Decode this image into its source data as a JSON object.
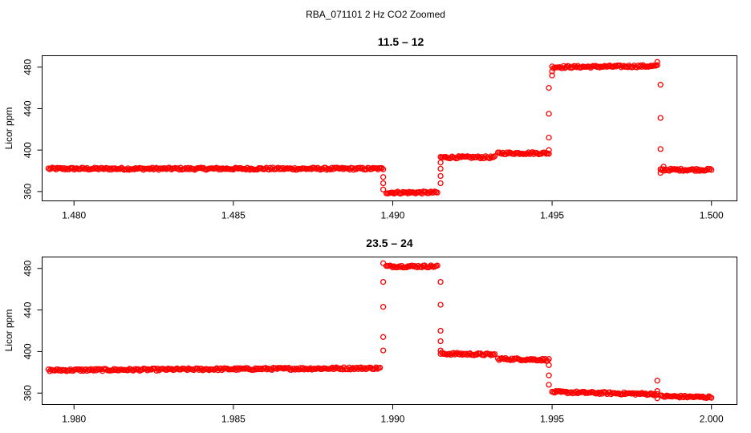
{
  "main_title": "RBA_071101  2 Hz CO2 Zoomed",
  "colors": {
    "points": "#ff0000",
    "axis": "#000000",
    "background": "#ffffff"
  },
  "chart_data": [
    {
      "type": "scatter",
      "title": "11.5 – 12",
      "xlabel": "",
      "ylabel": "Licor ppm",
      "xlim": [
        1.479,
        1.5008
      ],
      "ylim": [
        351,
        491
      ],
      "xticks": [
        1.48,
        1.485,
        1.49,
        1.495,
        1.5
      ],
      "xtick_labels": [
        "1.480",
        "1.485",
        "1.490",
        "1.495",
        "1.500"
      ],
      "yticks": [
        360,
        400,
        440,
        480
      ],
      "ytick_labels": [
        "360",
        "400",
        "440",
        "480"
      ],
      "plateaus": [
        {
          "x0": 1.4792,
          "x1": 1.4897,
          "y0": 382,
          "y1": 382
        },
        {
          "x0": 1.4898,
          "x1": 1.4914,
          "y0": 359,
          "y1": 359
        },
        {
          "x0": 1.4915,
          "x1": 1.4932,
          "y0": 393,
          "y1": 393
        },
        {
          "x0": 1.4933,
          "x1": 1.4949,
          "y0": 397,
          "y1": 397
        },
        {
          "x0": 1.495,
          "x1": 1.4983,
          "y0": 480,
          "y1": 481
        },
        {
          "x0": 1.4984,
          "x1": 1.5,
          "y0": 381,
          "y1": 381
        }
      ],
      "transition_points": [
        {
          "x": 1.4897,
          "y": 374
        },
        {
          "x": 1.4897,
          "y": 368
        },
        {
          "x": 1.4897,
          "y": 362
        },
        {
          "x": 1.4915,
          "y": 368
        },
        {
          "x": 1.4915,
          "y": 375
        },
        {
          "x": 1.4915,
          "y": 382
        },
        {
          "x": 1.4915,
          "y": 388
        },
        {
          "x": 1.4949,
          "y": 400
        },
        {
          "x": 1.4949,
          "y": 412
        },
        {
          "x": 1.4949,
          "y": 435
        },
        {
          "x": 1.4949,
          "y": 460
        },
        {
          "x": 1.495,
          "y": 472
        },
        {
          "x": 1.495,
          "y": 476
        },
        {
          "x": 1.4983,
          "y": 485
        },
        {
          "x": 1.4984,
          "y": 463
        },
        {
          "x": 1.4984,
          "y": 431
        },
        {
          "x": 1.4984,
          "y": 401
        },
        {
          "x": 1.4984,
          "y": 378
        },
        {
          "x": 1.4985,
          "y": 384
        }
      ]
    },
    {
      "type": "scatter",
      "title": "23.5 – 24",
      "xlabel": "",
      "ylabel": "Licor ppm",
      "xlim": [
        1.979,
        2.0008
      ],
      "ylim": [
        349,
        491
      ],
      "xticks": [
        1.98,
        1.985,
        1.99,
        1.995,
        2.0
      ],
      "xtick_labels": [
        "1.980",
        "1.985",
        "1.990",
        "1.995",
        "2.000"
      ],
      "yticks": [
        360,
        400,
        440,
        480
      ],
      "ytick_labels": [
        "360",
        "400",
        "440",
        "480"
      ],
      "plateaus": [
        {
          "x0": 1.9792,
          "x1": 1.9896,
          "y0": 382,
          "y1": 384
        },
        {
          "x0": 1.9898,
          "x1": 1.9914,
          "y0": 482,
          "y1": 482
        },
        {
          "x0": 1.9915,
          "x1": 1.9932,
          "y0": 398,
          "y1": 397
        },
        {
          "x0": 1.9933,
          "x1": 1.9949,
          "y0": 393,
          "y1": 392
        },
        {
          "x0": 1.995,
          "x1": 1.9983,
          "y0": 361,
          "y1": 359
        },
        {
          "x0": 1.9984,
          "x1": 2.0,
          "y0": 357,
          "y1": 356
        }
      ],
      "transition_points": [
        {
          "x": 1.9897,
          "y": 401
        },
        {
          "x": 1.9897,
          "y": 414
        },
        {
          "x": 1.9897,
          "y": 443
        },
        {
          "x": 1.9897,
          "y": 467
        },
        {
          "x": 1.9897,
          "y": 485
        },
        {
          "x": 1.9915,
          "y": 467
        },
        {
          "x": 1.9915,
          "y": 445
        },
        {
          "x": 1.9915,
          "y": 420
        },
        {
          "x": 1.9915,
          "y": 410
        },
        {
          "x": 1.9915,
          "y": 401
        },
        {
          "x": 1.9949,
          "y": 387
        },
        {
          "x": 1.9949,
          "y": 377
        },
        {
          "x": 1.9949,
          "y": 368
        },
        {
          "x": 1.9983,
          "y": 372
        },
        {
          "x": 1.9983,
          "y": 362
        },
        {
          "x": 1.9983,
          "y": 355
        }
      ]
    }
  ]
}
